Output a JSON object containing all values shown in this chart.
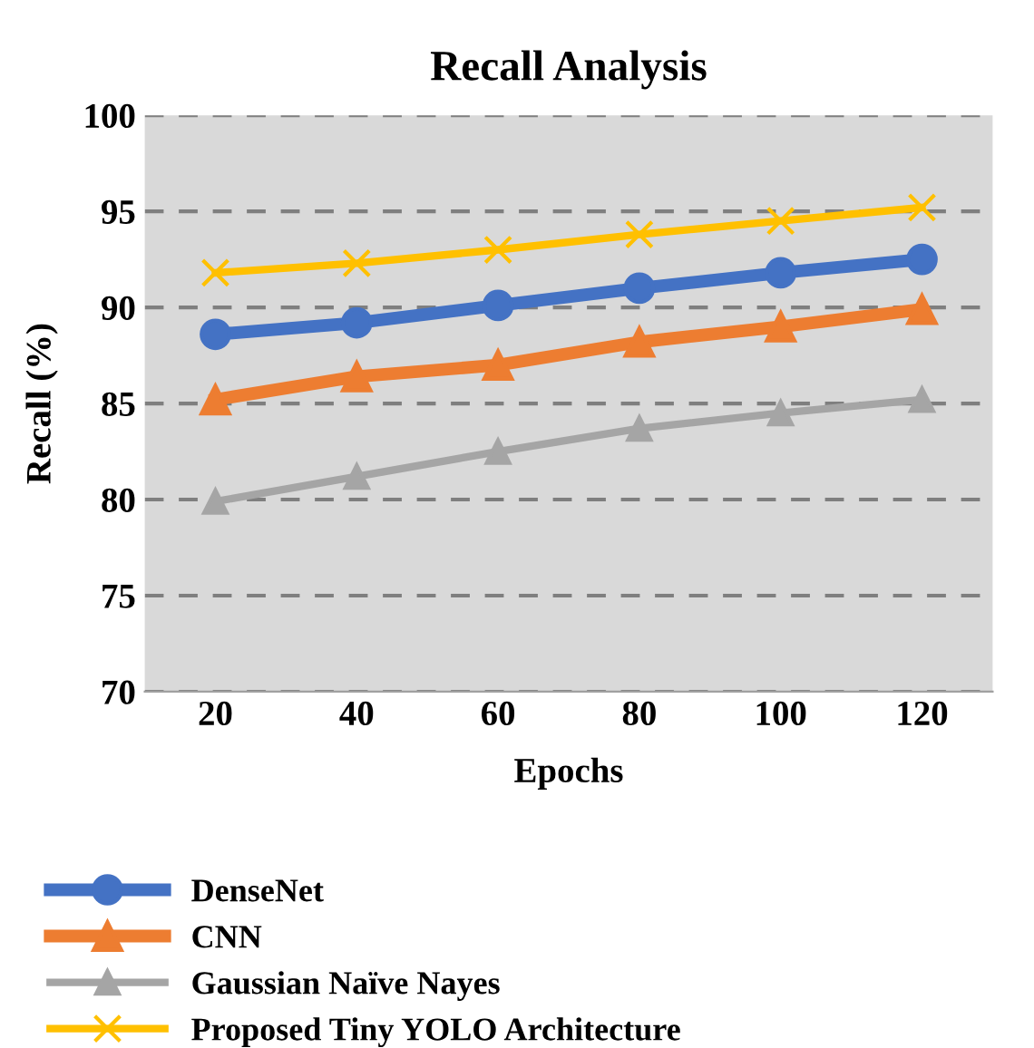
{
  "chart_data": {
    "type": "line",
    "title": "Recall Analysis",
    "xlabel": "Epochs",
    "ylabel": "Recall (%)",
    "categories": [
      "20",
      "40",
      "60",
      "80",
      "100",
      "120"
    ],
    "series": [
      {
        "name": "DenseNet",
        "color": "#4472c4",
        "marker": "circle",
        "values": [
          88.6,
          89.2,
          90.1,
          91.0,
          91.8,
          92.5
        ]
      },
      {
        "name": "CNN",
        "color": "#ed7d31",
        "marker": "triangle",
        "values": [
          85.2,
          86.4,
          87.0,
          88.2,
          89.0,
          89.9
        ]
      },
      {
        "name": "Gaussian Naïve Nayes",
        "color": "#a5a5a5",
        "marker": "triangle",
        "values": [
          79.9,
          81.2,
          82.5,
          83.7,
          84.5,
          85.2
        ]
      },
      {
        "name": "Proposed Tiny YOLO Architecture",
        "color": "#ffc000",
        "marker": "cross",
        "values": [
          91.8,
          92.3,
          93.0,
          93.8,
          94.5,
          95.2
        ]
      }
    ],
    "ylim": [
      70,
      100
    ],
    "yticks": [
      70,
      75,
      80,
      85,
      90,
      95,
      100
    ],
    "grid": "y",
    "legend": "bottom",
    "line_style": "solid"
  }
}
